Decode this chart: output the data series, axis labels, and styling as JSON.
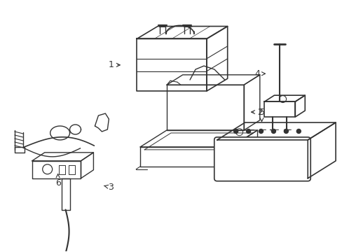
{
  "background_color": "#ffffff",
  "line_color": "#333333",
  "line_width": 1.0,
  "figsize": [
    4.89,
    3.6
  ],
  "dpi": 100,
  "label_fontsize": 9
}
